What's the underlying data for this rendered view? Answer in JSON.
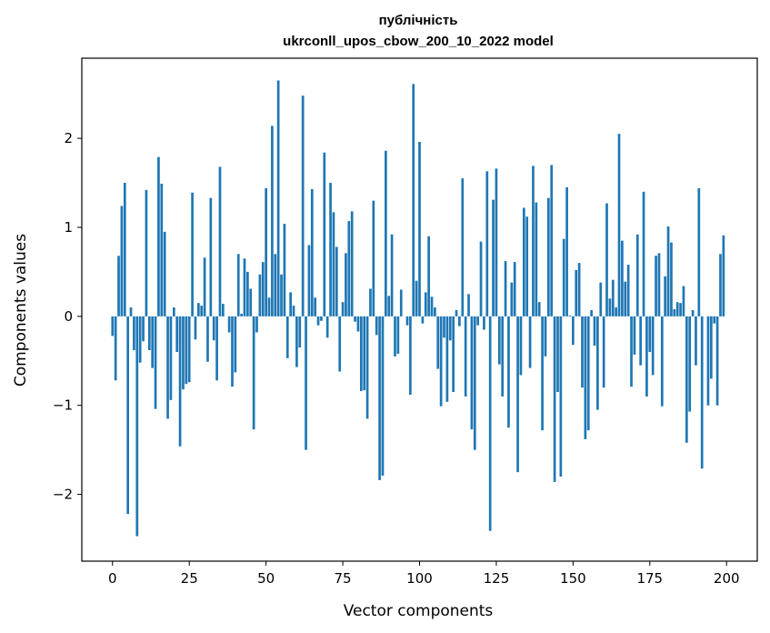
{
  "chart_data": {
    "type": "bar",
    "title": "публічність",
    "subtitle": "ukrconll_upos_cbow_200_10_2022 model",
    "xlabel": "Vector components",
    "ylabel": "Components values",
    "xlim": [
      -10,
      210
    ],
    "ylim": [
      -2.75,
      2.9
    ],
    "xticks": [
      0,
      25,
      50,
      75,
      100,
      125,
      150,
      175,
      200
    ],
    "xtick_labels": [
      "0",
      "25",
      "50",
      "75",
      "100",
      "125",
      "150",
      "175",
      "200"
    ],
    "yticks": [
      -2,
      -1,
      0,
      1,
      2
    ],
    "ytick_labels": [
      "−2",
      "−1",
      "0",
      "1",
      "2"
    ],
    "grid": false,
    "legend": "none",
    "bar_color": "#1f77b4",
    "x": [
      0,
      1,
      2,
      3,
      4,
      5,
      6,
      7,
      8,
      9,
      10,
      11,
      12,
      13,
      14,
      15,
      16,
      17,
      18,
      19,
      20,
      21,
      22,
      23,
      24,
      25,
      26,
      27,
      28,
      29,
      30,
      31,
      32,
      33,
      34,
      35,
      36,
      37,
      38,
      39,
      40,
      41,
      42,
      43,
      44,
      45,
      46,
      47,
      48,
      49,
      50,
      51,
      52,
      53,
      54,
      55,
      56,
      57,
      58,
      59,
      60,
      61,
      62,
      63,
      64,
      65,
      66,
      67,
      68,
      69,
      70,
      71,
      72,
      73,
      74,
      75,
      76,
      77,
      78,
      79,
      80,
      81,
      82,
      83,
      84,
      85,
      86,
      87,
      88,
      89,
      90,
      91,
      92,
      93,
      94,
      95,
      96,
      97,
      98,
      99,
      100,
      101,
      102,
      103,
      104,
      105,
      106,
      107,
      108,
      109,
      110,
      111,
      112,
      113,
      114,
      115,
      116,
      117,
      118,
      119,
      120,
      121,
      122,
      123,
      124,
      125,
      126,
      127,
      128,
      129,
      130,
      131,
      132,
      133,
      134,
      135,
      136,
      137,
      138,
      139,
      140,
      141,
      142,
      143,
      144,
      145,
      146,
      147,
      148,
      149,
      150,
      151,
      152,
      153,
      154,
      155,
      156,
      157,
      158,
      159,
      160,
      161,
      162,
      163,
      164,
      165,
      166,
      167,
      168,
      169,
      170,
      171,
      172,
      173,
      174,
      175,
      176,
      177,
      178,
      179,
      180,
      181,
      182,
      183,
      184,
      185,
      186,
      187,
      188,
      189,
      190,
      191,
      192,
      193,
      194,
      195,
      196,
      197,
      198,
      199
    ],
    "values": [
      -0.22,
      -0.72,
      0.68,
      1.24,
      1.5,
      -2.22,
      0.1,
      -0.38,
      -2.47,
      -0.52,
      -0.28,
      1.42,
      -0.38,
      -0.58,
      -1.04,
      1.79,
      1.49,
      0.95,
      -1.15,
      -0.94,
      0.1,
      -0.4,
      -1.46,
      -0.82,
      -0.76,
      -0.74,
      1.39,
      -0.26,
      0.15,
      0.12,
      0.66,
      -0.51,
      1.33,
      -0.27,
      -0.72,
      1.68,
      0.14,
      0.0,
      -0.18,
      -0.79,
      -0.63,
      0.7,
      0.03,
      0.65,
      0.5,
      0.31,
      -1.27,
      -0.18,
      0.47,
      0.61,
      1.44,
      0.21,
      2.14,
      0.7,
      2.65,
      0.47,
      1.04,
      -0.47,
      0.27,
      0.12,
      -0.57,
      -0.35,
      2.48,
      -1.5,
      0.8,
      1.43,
      0.21,
      -0.1,
      -0.05,
      1.84,
      -0.24,
      1.5,
      1.17,
      0.78,
      -0.62,
      0.16,
      0.71,
      1.07,
      1.18,
      -0.06,
      -0.17,
      -0.84,
      -0.83,
      -1.15,
      0.31,
      1.3,
      -0.21,
      -1.84,
      -1.79,
      1.86,
      0.23,
      0.92,
      -0.45,
      -0.42,
      0.3,
      0.0,
      -0.1,
      -0.88,
      2.61,
      0.4,
      1.96,
      -0.08,
      0.27,
      0.9,
      0.22,
      0.1,
      -0.59,
      -1.01,
      -0.24,
      -0.96,
      -0.27,
      -0.85,
      0.07,
      -0.11,
      1.55,
      -0.9,
      0.25,
      -1.27,
      -1.5,
      -0.1,
      0.84,
      -0.15,
      1.63,
      -2.41,
      1.31,
      1.66,
      -0.54,
      -0.9,
      0.62,
      -1.25,
      0.38,
      0.61,
      -1.75,
      -0.66,
      1.22,
      1.12,
      -0.58,
      1.69,
      1.28,
      0.16,
      -1.28,
      -0.45,
      1.33,
      1.7,
      -1.86,
      -0.85,
      -1.8,
      0.87,
      1.45,
      0.01,
      -0.32,
      0.52,
      0.6,
      -0.8,
      -1.38,
      -1.28,
      0.07,
      -0.33,
      -1.05,
      0.38,
      -0.8,
      1.27,
      0.2,
      0.41,
      0.1,
      2.05,
      0.85,
      0.39,
      0.58,
      -0.79,
      -0.43,
      0.92,
      -0.55,
      1.4,
      -0.9,
      -0.4,
      -0.66,
      0.68,
      0.71,
      -1.01,
      0.45,
      1.01,
      0.83,
      0.08,
      0.16,
      0.15,
      0.34,
      -1.42,
      -1.07,
      0.07,
      -0.55,
      1.44,
      -1.71,
      0.0,
      -1.0,
      -0.7,
      -0.08,
      -1.0,
      0.7,
      0.91
    ]
  }
}
